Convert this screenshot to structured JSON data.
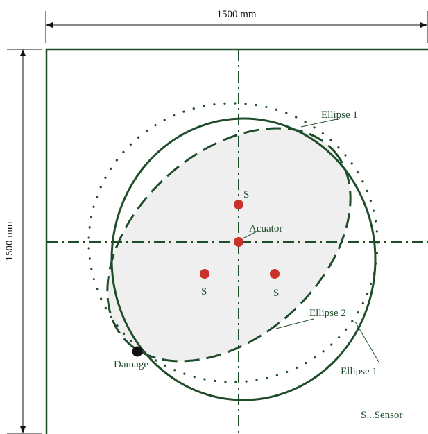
{
  "dimensions": {
    "width_label": "1500 mm",
    "height_label": "1500 mm"
  },
  "labels": {
    "ellipse_1_top": "Ellipse 1",
    "ellipse_1_bottom": "Ellipse 1",
    "ellipse_2": "Ellipse 2",
    "actuator": "Acuator",
    "sensor_top": "S",
    "sensor_left": "S",
    "sensor_right": "S",
    "damage": "Damage",
    "legend": "S...Sensor"
  },
  "colors": {
    "line_green": "#1f4d2b",
    "sensor_red": "#c8322a",
    "damage_black": "#111111",
    "shaded_region": "#efefef",
    "dimension_line": "#111111"
  }
}
